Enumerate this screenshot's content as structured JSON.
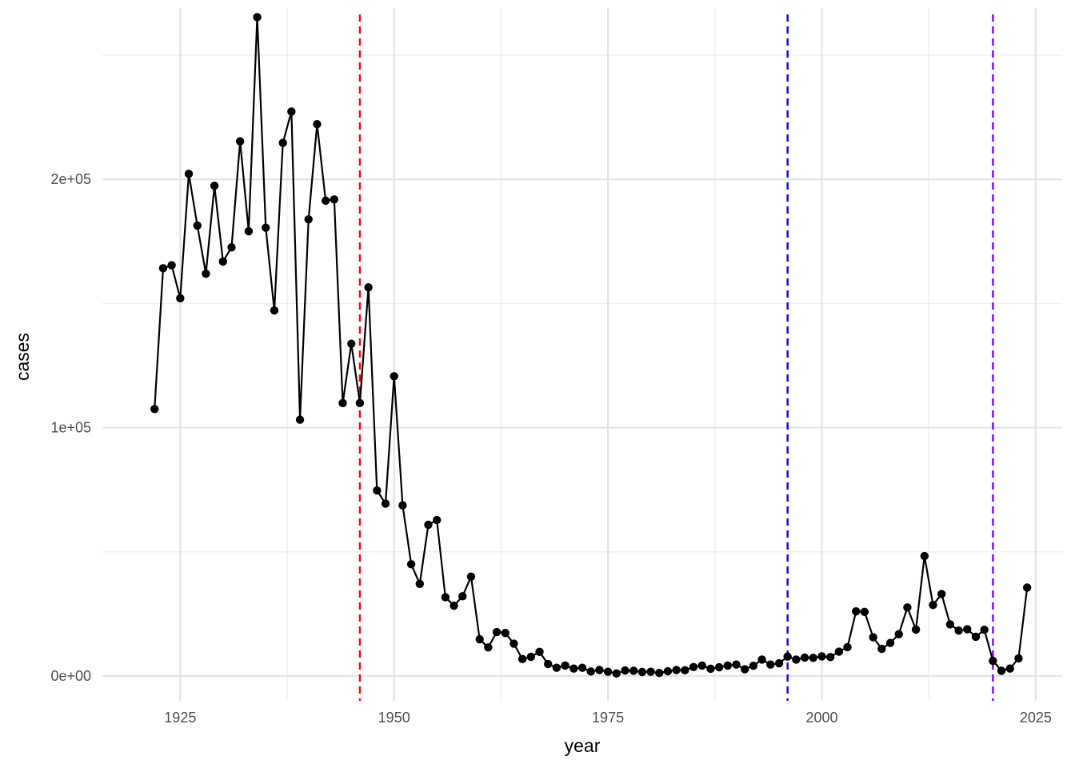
{
  "chart_data": {
    "type": "line",
    "title": "",
    "xlabel": "year",
    "ylabel": "cases",
    "xlim": [
      1915.9,
      2028.1
    ],
    "ylim": [
      -10000,
      269000
    ],
    "x_ticks": [
      {
        "value": 1925,
        "label": "1925"
      },
      {
        "value": 1950,
        "label": "1950"
      },
      {
        "value": 1975,
        "label": "1975"
      },
      {
        "value": 2000,
        "label": "2000"
      },
      {
        "value": 2025,
        "label": "2025"
      }
    ],
    "x_minor_ticks": [
      1937.5,
      1962.5,
      1987.5,
      2012.5
    ],
    "y_ticks": [
      {
        "value": 0,
        "label": "0e+00"
      },
      {
        "value": 100000,
        "label": "1e+05"
      },
      {
        "value": 200000,
        "label": "2e+05"
      }
    ],
    "y_minor_ticks": [
      50000,
      150000,
      250000
    ],
    "grid": true,
    "series": [
      {
        "color": "#000000",
        "x": [
          1922,
          1923,
          1924,
          1925,
          1926,
          1927,
          1928,
          1929,
          1930,
          1931,
          1932,
          1933,
          1934,
          1935,
          1936,
          1937,
          1938,
          1939,
          1940,
          1941,
          1942,
          1943,
          1944,
          1945,
          1946,
          1947,
          1948,
          1949,
          1950,
          1951,
          1952,
          1953,
          1954,
          1955,
          1956,
          1957,
          1958,
          1959,
          1960,
          1961,
          1962,
          1963,
          1964,
          1965,
          1966,
          1967,
          1968,
          1969,
          1970,
          1971,
          1972,
          1973,
          1974,
          1975,
          1976,
          1977,
          1978,
          1979,
          1980,
          1981,
          1982,
          1983,
          1984,
          1985,
          1986,
          1987,
          1988,
          1989,
          1990,
          1991,
          1992,
          1993,
          1994,
          1995,
          1996,
          1997,
          1998,
          1999,
          2000,
          2001,
          2002,
          2003,
          2004,
          2005,
          2006,
          2007,
          2008,
          2009,
          2010,
          2011,
          2012,
          2013,
          2014,
          2015,
          2016,
          2017,
          2018,
          2019,
          2020,
          2021,
          2022,
          2023,
          2024
        ],
        "y": [
          107500,
          164200,
          165400,
          152100,
          202200,
          181400,
          162000,
          197400,
          166900,
          172600,
          215300,
          179100,
          265300,
          180500,
          147200,
          214700,
          227300,
          103200,
          183900,
          222200,
          191400,
          191900,
          109900,
          133800,
          109900,
          156500,
          74700,
          69400,
          120700,
          68700,
          45000,
          37100,
          60900,
          62800,
          31700,
          28300,
          32100,
          40000,
          14800,
          11500,
          17700,
          17300,
          13000,
          6800,
          7700,
          9700,
          4800,
          3300,
          4200,
          3000,
          3300,
          1800,
          2400,
          1700,
          1000,
          2200,
          2100,
          1600,
          1700,
          1200,
          1900,
          2400,
          2300,
          3600,
          4200,
          2900,
          3500,
          4200,
          4600,
          2700,
          4100,
          6600,
          4600,
          5100,
          7800,
          6600,
          7400,
          7300,
          7900,
          7600,
          9800,
          11600,
          26000,
          25800,
          15600,
          10900,
          13300,
          16800,
          27600,
          18700,
          48300,
          28600,
          33000,
          20800,
          18300,
          18800,
          15800,
          18600,
          6100,
          2100,
          3000,
          7100,
          35600
        ]
      }
    ],
    "reference_lines": [
      {
        "x": 1946,
        "color": "#ff0000"
      },
      {
        "x": 1996,
        "color": "#0000ff"
      },
      {
        "x": 2020,
        "color": "#7f00ff"
      }
    ]
  }
}
